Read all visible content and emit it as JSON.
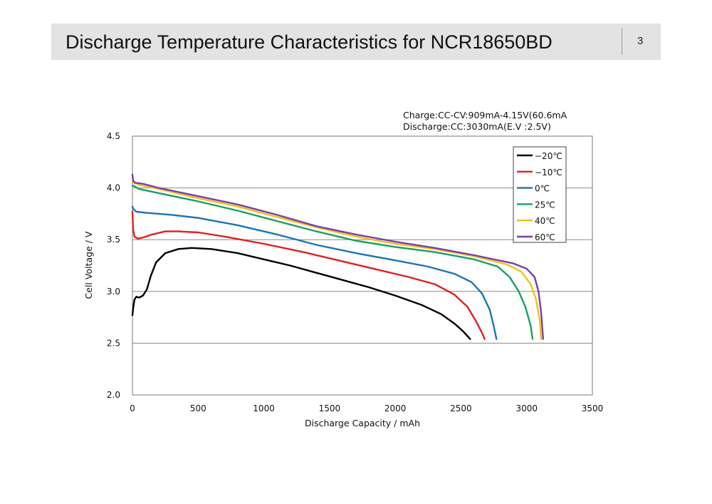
{
  "header": {
    "title": "Discharge Temperature Characteristics for NCR18650BD",
    "page_number": "3"
  },
  "chart_data": {
    "type": "line",
    "title": "",
    "annotations": [
      "Charge:CC-CV:909mA-4.15V(60.6mA",
      "Discharge:CC:3030mA(E.V  :2.5V)"
    ],
    "xlabel": "Discharge  Capacity  / mAh",
    "ylabel": "Cell  Voltage  /  V",
    "xlim": [
      0,
      3500
    ],
    "ylim": [
      2.0,
      4.5
    ],
    "x_ticks": [
      "0",
      "500",
      "1000",
      "1500",
      "2000",
      "2500",
      "3000",
      "3500"
    ],
    "y_ticks": [
      "2.0",
      "2.5",
      "3.0",
      "3.5",
      "4.0",
      "4.5"
    ],
    "grid": "horizontal",
    "legend_position": "top-right",
    "series": [
      {
        "name": "−20℃",
        "color": "#000000",
        "points": [
          [
            0,
            2.77
          ],
          [
            5,
            2.83
          ],
          [
            15,
            2.92
          ],
          [
            30,
            2.95
          ],
          [
            50,
            2.94
          ],
          [
            80,
            2.96
          ],
          [
            110,
            3.02
          ],
          [
            140,
            3.15
          ],
          [
            180,
            3.28
          ],
          [
            250,
            3.37
          ],
          [
            350,
            3.41
          ],
          [
            450,
            3.42
          ],
          [
            600,
            3.41
          ],
          [
            800,
            3.37
          ],
          [
            1000,
            3.31
          ],
          [
            1200,
            3.25
          ],
          [
            1400,
            3.18
          ],
          [
            1600,
            3.11
          ],
          [
            1800,
            3.04
          ],
          [
            2000,
            2.96
          ],
          [
            2200,
            2.87
          ],
          [
            2350,
            2.78
          ],
          [
            2450,
            2.69
          ],
          [
            2520,
            2.61
          ],
          [
            2570,
            2.54
          ]
        ]
      },
      {
        "name": "−10℃",
        "color": "#e02020",
        "points": [
          [
            0,
            3.77
          ],
          [
            5,
            3.6
          ],
          [
            15,
            3.53
          ],
          [
            40,
            3.51
          ],
          [
            80,
            3.52
          ],
          [
            150,
            3.55
          ],
          [
            250,
            3.58
          ],
          [
            350,
            3.58
          ],
          [
            500,
            3.57
          ],
          [
            700,
            3.53
          ],
          [
            1000,
            3.46
          ],
          [
            1300,
            3.38
          ],
          [
            1600,
            3.29
          ],
          [
            1900,
            3.2
          ],
          [
            2100,
            3.14
          ],
          [
            2300,
            3.07
          ],
          [
            2450,
            2.97
          ],
          [
            2550,
            2.85
          ],
          [
            2620,
            2.7
          ],
          [
            2660,
            2.6
          ],
          [
            2680,
            2.54
          ]
        ]
      },
      {
        "name": "0℃",
        "color": "#1b74b8",
        "points": [
          [
            0,
            3.82
          ],
          [
            10,
            3.79
          ],
          [
            30,
            3.77
          ],
          [
            100,
            3.76
          ],
          [
            300,
            3.74
          ],
          [
            500,
            3.71
          ],
          [
            800,
            3.64
          ],
          [
            1100,
            3.55
          ],
          [
            1400,
            3.45
          ],
          [
            1700,
            3.37
          ],
          [
            2000,
            3.3
          ],
          [
            2250,
            3.24
          ],
          [
            2450,
            3.17
          ],
          [
            2580,
            3.09
          ],
          [
            2660,
            2.98
          ],
          [
            2720,
            2.82
          ],
          [
            2750,
            2.66
          ],
          [
            2770,
            2.54
          ]
        ]
      },
      {
        "name": "25℃",
        "color": "#18a060",
        "points": [
          [
            0,
            4.02
          ],
          [
            10,
            4.02
          ],
          [
            50,
            3.99
          ],
          [
            200,
            3.95
          ],
          [
            500,
            3.87
          ],
          [
            800,
            3.78
          ],
          [
            1100,
            3.68
          ],
          [
            1400,
            3.58
          ],
          [
            1700,
            3.49
          ],
          [
            2000,
            3.43
          ],
          [
            2300,
            3.38
          ],
          [
            2600,
            3.31
          ],
          [
            2780,
            3.24
          ],
          [
            2870,
            3.14
          ],
          [
            2940,
            3.0
          ],
          [
            2990,
            2.85
          ],
          [
            3030,
            2.67
          ],
          [
            3045,
            2.54
          ]
        ]
      },
      {
        "name": "40℃",
        "color": "#f0c020",
        "points": [
          [
            0,
            4.05
          ],
          [
            10,
            4.05
          ],
          [
            50,
            4.03
          ],
          [
            200,
            3.99
          ],
          [
            500,
            3.9
          ],
          [
            800,
            3.82
          ],
          [
            1100,
            3.72
          ],
          [
            1400,
            3.62
          ],
          [
            1700,
            3.53
          ],
          [
            2000,
            3.46
          ],
          [
            2300,
            3.41
          ],
          [
            2600,
            3.34
          ],
          [
            2850,
            3.26
          ],
          [
            2960,
            3.19
          ],
          [
            3030,
            3.07
          ],
          [
            3070,
            2.93
          ],
          [
            3100,
            2.72
          ],
          [
            3110,
            2.54
          ]
        ]
      },
      {
        "name": "60℃",
        "color": "#7a3fa8",
        "points": [
          [
            0,
            4.13
          ],
          [
            5,
            4.07
          ],
          [
            20,
            4.05
          ],
          [
            80,
            4.04
          ],
          [
            200,
            4.0
          ],
          [
            500,
            3.92
          ],
          [
            800,
            3.84
          ],
          [
            1100,
            3.74
          ],
          [
            1400,
            3.63
          ],
          [
            1700,
            3.55
          ],
          [
            2000,
            3.48
          ],
          [
            2300,
            3.42
          ],
          [
            2600,
            3.35
          ],
          [
            2900,
            3.27
          ],
          [
            3000,
            3.22
          ],
          [
            3060,
            3.14
          ],
          [
            3090,
            3.0
          ],
          [
            3110,
            2.8
          ],
          [
            3125,
            2.54
          ]
        ]
      }
    ]
  }
}
